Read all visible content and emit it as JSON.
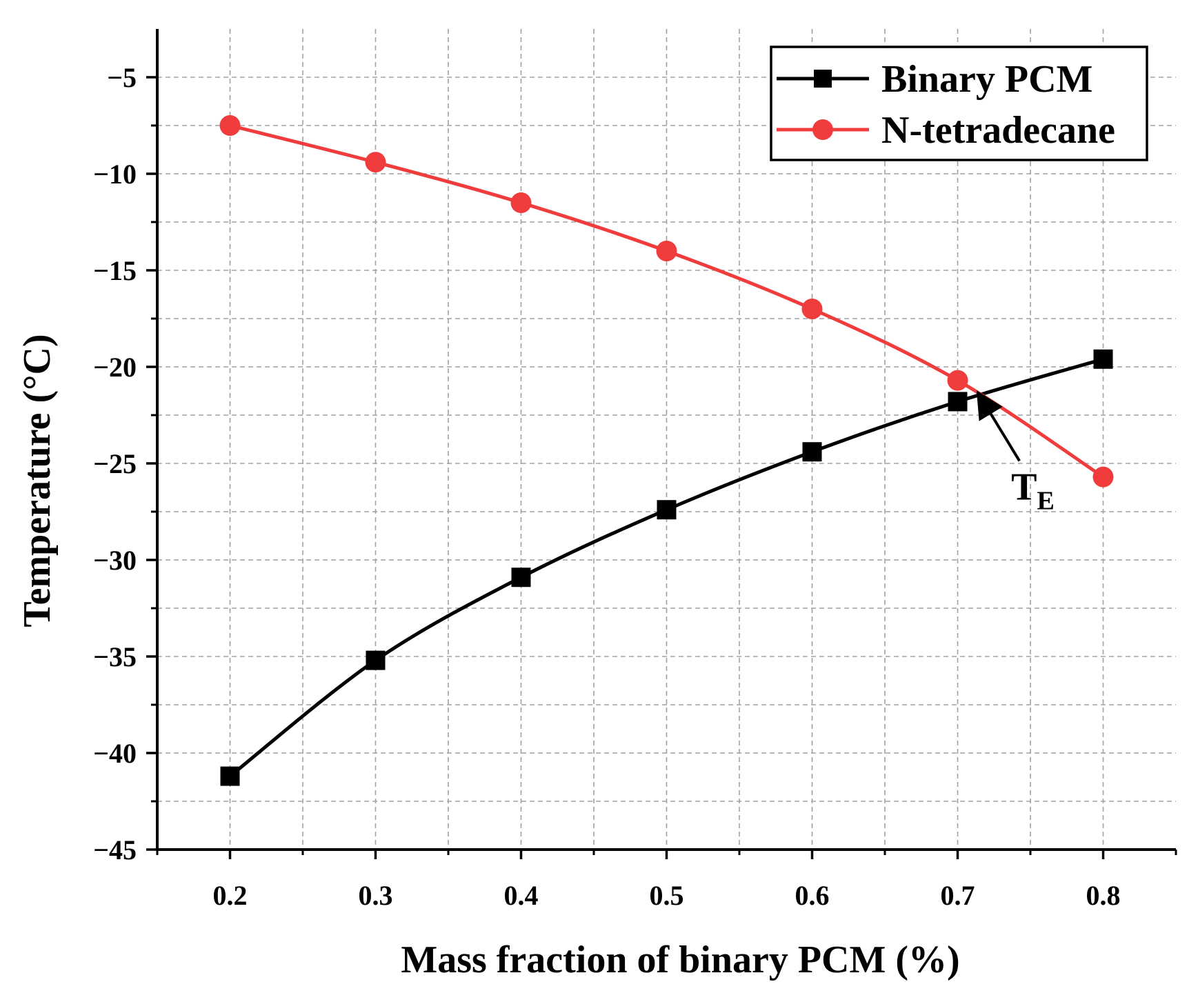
{
  "chart_data": {
    "type": "line",
    "title": "",
    "xlabel": "Mass fraction of binary PCM (%)",
    "ylabel": "Temperature (°C)",
    "x": [
      0.2,
      0.3,
      0.4,
      0.5,
      0.6,
      0.7,
      0.8
    ],
    "xlim": [
      0.15,
      0.85
    ],
    "ylim": [
      -45,
      -2.5
    ],
    "x_ticks": [
      0.2,
      0.3,
      0.4,
      0.5,
      0.6,
      0.7,
      0.8
    ],
    "x_tick_labels": [
      "0.2",
      "0.3",
      "0.4",
      "0.5",
      "0.6",
      "0.7",
      "0.8"
    ],
    "y_ticks": [
      -45,
      -40,
      -35,
      -30,
      -25,
      -20,
      -15,
      -10,
      -5
    ],
    "y_tick_labels": [
      "−45",
      "−40",
      "−35",
      "−30",
      "−25",
      "−20",
      "−15",
      "−10",
      "−5"
    ],
    "grid": true,
    "legend_position": "top-right",
    "series": [
      {
        "name": "Binary PCM",
        "color": "#000000",
        "marker": "square",
        "values": [
          -41.2,
          -35.2,
          -30.9,
          -27.4,
          -24.4,
          -21.8,
          -19.6
        ]
      },
      {
        "name": "N-tetradecane",
        "color": "#f03c3c",
        "marker": "circle",
        "values": [
          -7.5,
          -9.4,
          -11.5,
          -14.0,
          -17.0,
          -20.7,
          -25.7
        ]
      }
    ],
    "annotation": {
      "text": "T",
      "subscript": "E",
      "points_to_x": 0.715,
      "points_to_y": -21.3
    }
  }
}
